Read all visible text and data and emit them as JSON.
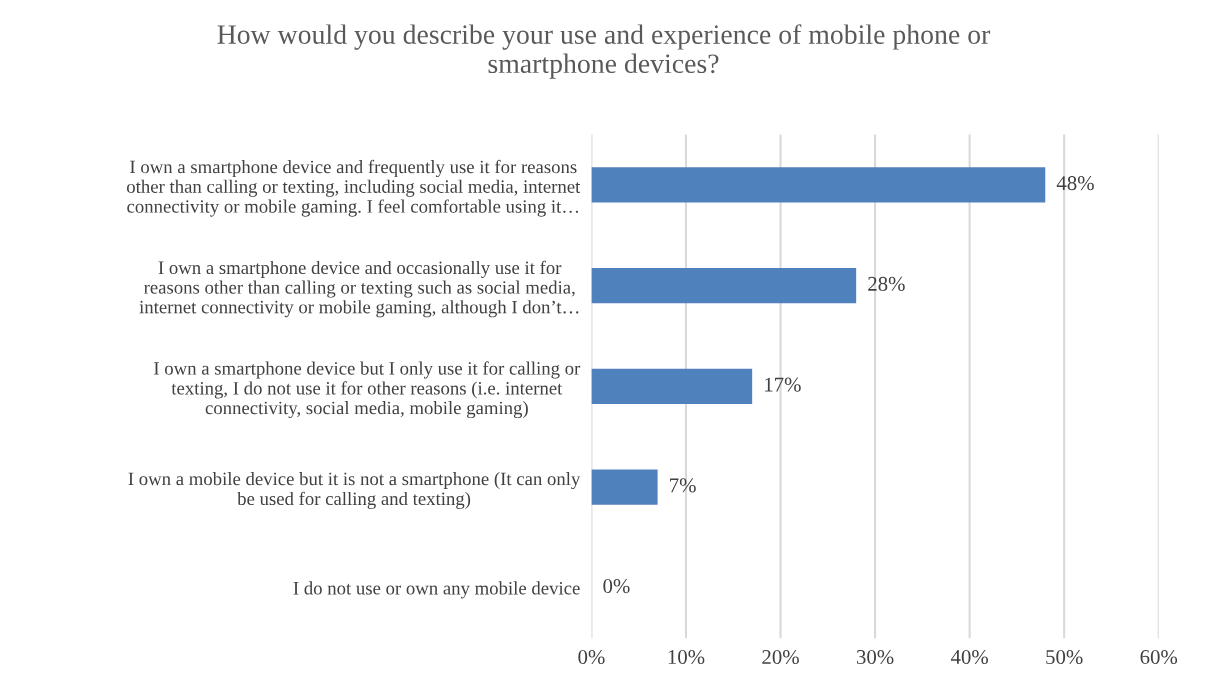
{
  "chart_data": {
    "type": "bar",
    "orientation": "horizontal",
    "title": "How would you describe your use and experience of mobile phone or\nsmartphone devices?",
    "categories": [
      "I own a smartphone device and frequently use it for reasons\nother than calling or texting, including social media, internet\nconnectivity or mobile gaming. I feel comfortable using it…",
      "I own a smartphone device and occasionally use it for\nreasons other than calling or texting such as social media,\ninternet connectivity or mobile gaming, although I don’t…",
      "I own a smartphone device but I only use it for calling or\ntexting, I do not use it for other reasons (i.e. internet\nconnectivity, social media, mobile gaming)",
      "I own a mobile device but it is not a smartphone (It can only\nbe used for calling and texting)",
      "I do not use or own any mobile device"
    ],
    "values": [
      48,
      28,
      17,
      7,
      0
    ],
    "value_labels": [
      "48%",
      "28%",
      "17%",
      "7%",
      "0%"
    ],
    "color": "#4f81bd",
    "xlim": [
      0,
      60
    ],
    "xticks": [
      {
        "value": 0,
        "label": "0%"
      },
      {
        "value": 10,
        "label": "10%"
      },
      {
        "value": 20,
        "label": "20%"
      },
      {
        "value": 30,
        "label": "30%"
      },
      {
        "value": 40,
        "label": "40%"
      },
      {
        "value": 50,
        "label": "50%"
      },
      {
        "value": 60,
        "label": "60%"
      }
    ],
    "grid": "x"
  }
}
